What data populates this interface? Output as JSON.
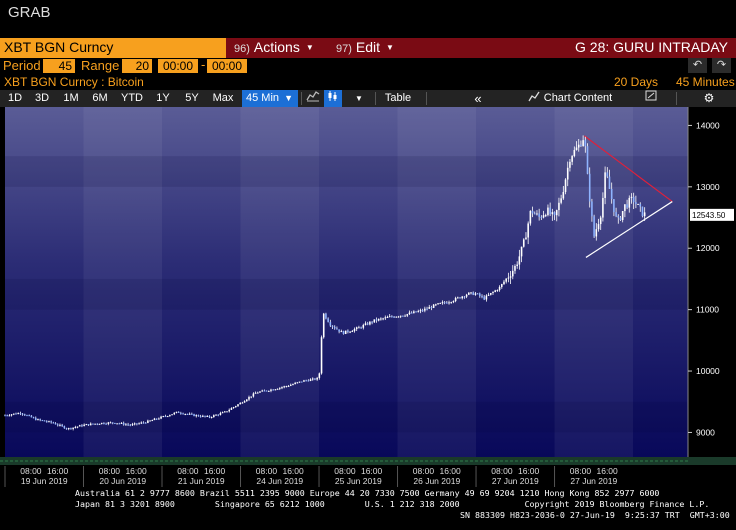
{
  "window": {
    "title": "GRAB"
  },
  "command_bar": {
    "ticker": "XBT BGN Curncy",
    "actions": {
      "code": "96)",
      "label": "Actions"
    },
    "edit": {
      "code": "97)",
      "label": "Edit"
    },
    "function_title": "G 28: GURU INTRADAY"
  },
  "period_bar": {
    "period_label": "Period",
    "period_value": "45",
    "range_label": "Range",
    "range_value": "20",
    "start_time": "00:00",
    "end_time": "00:00"
  },
  "security_line": {
    "security": "XBT BGN Curncy : Bitcoin",
    "range_days": "20 Days",
    "interval": "45 Minutes"
  },
  "tabs": {
    "t1d": "1D",
    "t3d": "3D",
    "t1m": "1M",
    "t6m": "6M",
    "tytd": "YTD",
    "t1y": "1Y",
    "t5y": "5Y",
    "tmax": "Max",
    "tinterval": "45 Min",
    "table": "Table",
    "chart_content": "Chart Content"
  },
  "colors": {
    "accent_orange": "#f7a01e",
    "command_red": "#7a0b14",
    "active_tab_blue": "#1c6fd6",
    "candle": "#ffffff",
    "triangle_upper": "#e0203a",
    "triangle_lower": "#ffffff"
  },
  "chart_data": {
    "type": "line",
    "title": "",
    "xlabel": "",
    "ylabel": "",
    "ylim": [
      8600,
      14300
    ],
    "yticks": [
      9000,
      10000,
      11000,
      12000,
      13000,
      14000
    ],
    "y_tick_labels": [
      "9000",
      "10000",
      "11000",
      "12000",
      "13000",
      "14000"
    ],
    "last_value_label": "12543.50",
    "last_value": 12543.5,
    "x_range": [
      0,
      8.7
    ],
    "days": [
      {
        "label": "19 Jun 2019",
        "ticks": [
          "08:00",
          "16:00"
        ]
      },
      {
        "label": "20 Jun 2019",
        "ticks": [
          "08:00",
          "16:00"
        ]
      },
      {
        "label": "21 Jun 2019",
        "ticks": [
          "08:00",
          "16:00"
        ]
      },
      {
        "label": "24 Jun 2019",
        "ticks": [
          "08:00",
          "16:00"
        ]
      },
      {
        "label": "25 Jun 2019",
        "ticks": [
          "08:00",
          "16:00"
        ]
      },
      {
        "label": "26 Jun 2019",
        "ticks": [
          "08:00",
          "16:00"
        ]
      },
      {
        "label": "27 Jun 2019",
        "ticks": [
          "08:00",
          "16:00"
        ]
      },
      {
        "label": "27 Jun 2019",
        "ticks": [
          "08:00",
          "16:00"
        ]
      }
    ],
    "series": [
      {
        "values": [
          [
            0.0,
            9280
          ],
          [
            0.2,
            9320
          ],
          [
            0.4,
            9210
          ],
          [
            0.6,
            9160
          ],
          [
            0.8,
            9060
          ],
          [
            1.0,
            9120
          ],
          [
            1.2,
            9150
          ],
          [
            1.4,
            9160
          ],
          [
            1.6,
            9120
          ],
          [
            1.8,
            9170
          ],
          [
            2.0,
            9250
          ],
          [
            2.2,
            9330
          ],
          [
            2.4,
            9280
          ],
          [
            2.6,
            9250
          ],
          [
            2.8,
            9330
          ],
          [
            3.0,
            9480
          ],
          [
            3.2,
            9650
          ],
          [
            3.4,
            9700
          ],
          [
            3.6,
            9760
          ],
          [
            3.8,
            9840
          ],
          [
            4.0,
            9880
          ],
          [
            4.05,
            10950
          ],
          [
            4.15,
            10750
          ],
          [
            4.3,
            10620
          ],
          [
            4.5,
            10700
          ],
          [
            4.7,
            10820
          ],
          [
            4.9,
            10880
          ],
          [
            5.1,
            10920
          ],
          [
            5.3,
            10980
          ],
          [
            5.5,
            11080
          ],
          [
            5.7,
            11150
          ],
          [
            5.9,
            11260
          ],
          [
            6.0,
            11260
          ],
          [
            6.1,
            11180
          ],
          [
            6.3,
            11360
          ],
          [
            6.5,
            11700
          ],
          [
            6.6,
            12030
          ],
          [
            6.7,
            12620
          ],
          [
            6.8,
            12500
          ],
          [
            6.9,
            12620
          ],
          [
            7.0,
            12480
          ],
          [
            7.1,
            12900
          ],
          [
            7.2,
            13500
          ],
          [
            7.3,
            13650
          ],
          [
            7.38,
            13830
          ],
          [
            7.42,
            13160
          ],
          [
            7.5,
            12180
          ],
          [
            7.6,
            12620
          ],
          [
            7.65,
            13250
          ],
          [
            7.72,
            12850
          ],
          [
            7.8,
            12400
          ],
          [
            7.9,
            12700
          ],
          [
            8.0,
            12800
          ],
          [
            8.1,
            12600
          ],
          [
            8.15,
            12543.5
          ]
        ]
      }
    ],
    "annotations": [
      {
        "type": "trendline",
        "color": "upper",
        "from": [
          7.38,
          13830
        ],
        "to": [
          8.5,
          12760
        ]
      },
      {
        "type": "trendline",
        "color": "lower",
        "from": [
          7.4,
          11850
        ],
        "to": [
          8.5,
          12760
        ]
      }
    ]
  },
  "footer": {
    "line1": "Australia 61 2 9777 8600 Brazil 5511 2395 9000 Europe 44 20 7330 7500 Germany 49 69 9204 1210 Hong Kong 852 2977 6000",
    "line2": "Japan 81 3 3201 8900        Singapore 65 6212 1000        U.S. 1 212 318 2000             Copyright 2019 Bloomberg Finance L.P.",
    "line3": "SN 883309 H823-2036-0 27-Jun-19  9:25:37 TRT  GMT+3:00"
  }
}
